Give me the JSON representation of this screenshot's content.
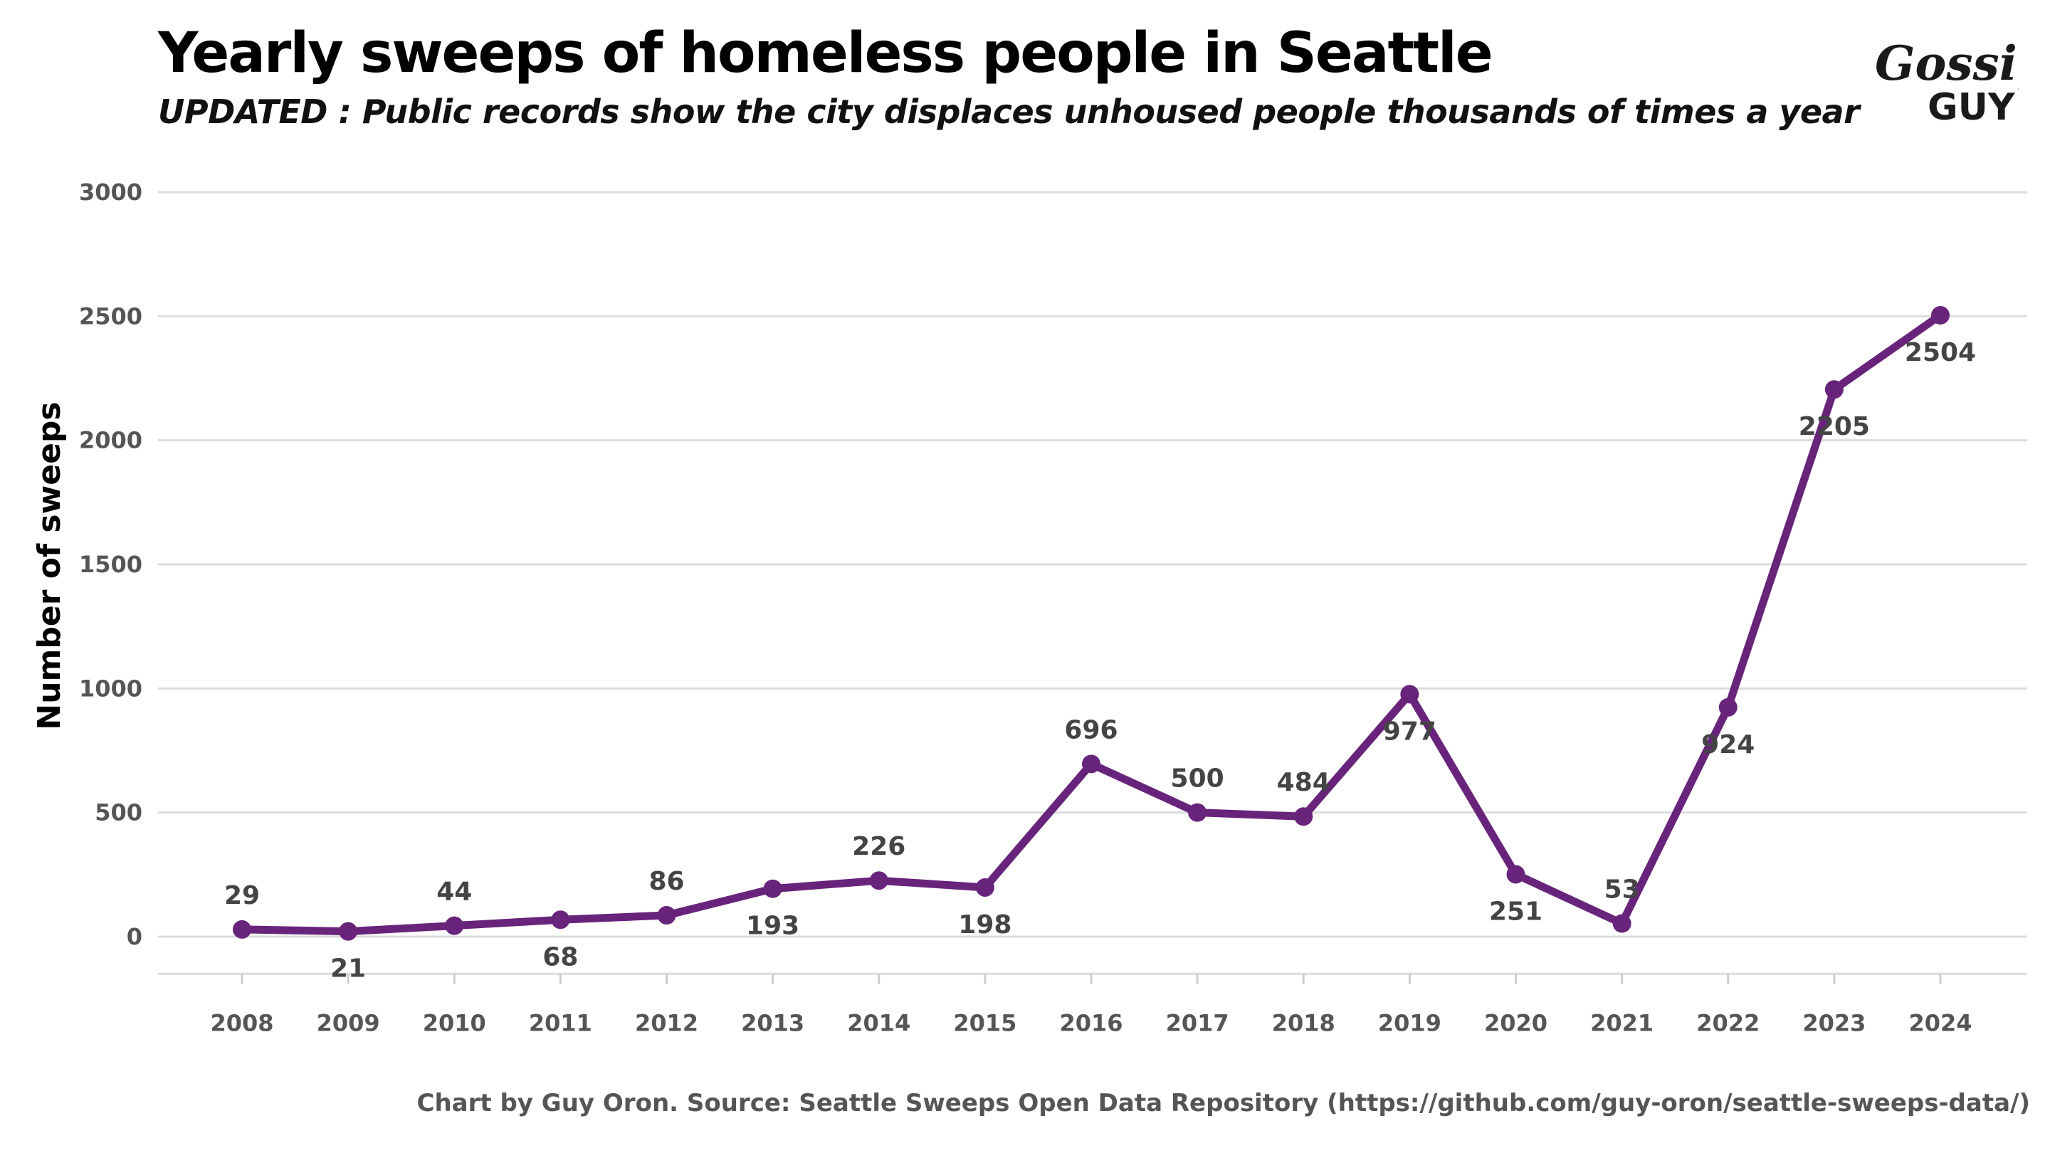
{
  "chart_data": {
    "type": "line",
    "title": "Yearly sweeps of homeless people in Seattle",
    "subtitle": "UPDATED : Public records show the city displaces unhoused people thousands of times a year",
    "ylabel": "Number of sweeps",
    "xlabel": "",
    "caption": "Chart by Guy Oron. Source: Seattle Sweeps Open Data Repository (https://github.com/guy-oron/seattle-sweeps-data/)",
    "categories": [
      "2008",
      "2009",
      "2010",
      "2011",
      "2012",
      "2013",
      "2014",
      "2015",
      "2016",
      "2017",
      "2018",
      "2019",
      "2020",
      "2021",
      "2022",
      "2023",
      "2024"
    ],
    "values": [
      29,
      21,
      44,
      68,
      86,
      193,
      226,
      198,
      696,
      500,
      484,
      977,
      251,
      53,
      924,
      2205,
      2504
    ],
    "label_position": [
      "above",
      "below",
      "above",
      "below",
      "above",
      "below",
      "above",
      "below",
      "above",
      "above",
      "above",
      "below",
      "below",
      "above",
      "below",
      "below",
      "below"
    ],
    "yticks": [
      0,
      500,
      1000,
      1500,
      2000,
      2500,
      3000
    ],
    "ylim": [
      -150,
      3000
    ],
    "grid": true,
    "legend": "none",
    "line_color": "#68247a"
  },
  "logo": {
    "line1": "Gossip",
    "line2": "GUY"
  }
}
